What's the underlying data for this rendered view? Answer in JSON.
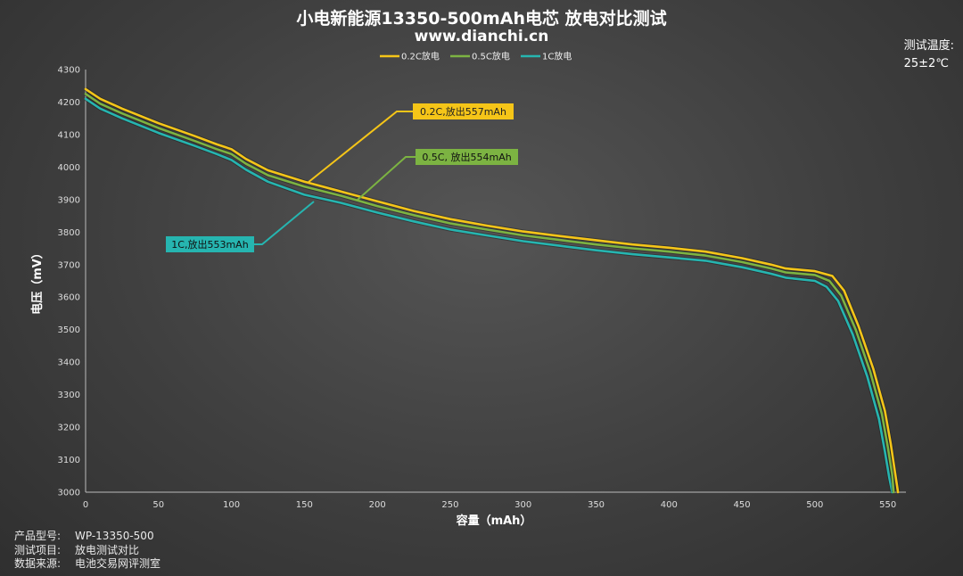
{
  "header": {
    "title": "小电新能源13350-500mAh电芯 放电对比测试",
    "subtitle": "www.dianchi.cn",
    "temp_label": "测试温度:",
    "temp_value": "25±2℃"
  },
  "footer": {
    "model_label": "产品型号:",
    "model_value": "WP-13350-500",
    "item_label": "测试项目:",
    "item_value": "放电测试对比",
    "source_label": "数据来源:",
    "source_value": "电池交易网评测室"
  },
  "chart_data": {
    "type": "line",
    "title": "小电新能源13350-500mAh电芯 放电对比测试",
    "xlabel": "容量（mAh）",
    "ylabel": "电压（mV）",
    "xlim": [
      0,
      560
    ],
    "ylim": [
      3000,
      4300
    ],
    "x_ticks": [
      0,
      50,
      100,
      150,
      200,
      250,
      300,
      350,
      400,
      450,
      500,
      550
    ],
    "y_ticks": [
      3000,
      3100,
      3200,
      3300,
      3400,
      3500,
      3600,
      3700,
      3800,
      3900,
      4000,
      4100,
      4200,
      4300
    ],
    "grid": false,
    "legend_position": "top-center",
    "series": [
      {
        "name": "0.2C放电",
        "color": "#f5c518",
        "x": [
          0,
          10,
          25,
          50,
          75,
          90,
          100,
          110,
          125,
          150,
          175,
          200,
          225,
          250,
          275,
          300,
          325,
          350,
          375,
          400,
          425,
          450,
          470,
          480,
          500,
          512,
          520,
          530,
          540,
          548,
          552,
          555,
          557
        ],
        "y": [
          4240,
          4210,
          4180,
          4135,
          4095,
          4070,
          4055,
          4025,
          3990,
          3955,
          3925,
          3895,
          3865,
          3840,
          3820,
          3802,
          3788,
          3775,
          3762,
          3752,
          3740,
          3720,
          3700,
          3688,
          3680,
          3665,
          3620,
          3510,
          3380,
          3250,
          3150,
          3060,
          3000
        ]
      },
      {
        "name": "0.5C放电",
        "color": "#7cb342",
        "x": [
          0,
          10,
          25,
          50,
          75,
          90,
          100,
          110,
          125,
          150,
          175,
          200,
          225,
          250,
          275,
          300,
          325,
          350,
          375,
          400,
          425,
          450,
          470,
          480,
          500,
          510,
          518,
          528,
          538,
          546,
          550,
          553,
          554
        ],
        "y": [
          4225,
          4195,
          4165,
          4120,
          4080,
          4055,
          4040,
          4010,
          3975,
          3940,
          3912,
          3880,
          3852,
          3827,
          3808,
          3790,
          3776,
          3762,
          3750,
          3740,
          3728,
          3708,
          3688,
          3676,
          3668,
          3650,
          3605,
          3500,
          3370,
          3240,
          3140,
          3055,
          3000
        ]
      },
      {
        "name": "1C放电",
        "color": "#26b5b0",
        "x": [
          0,
          10,
          25,
          50,
          75,
          90,
          100,
          110,
          125,
          150,
          175,
          200,
          225,
          250,
          275,
          300,
          325,
          350,
          375,
          400,
          425,
          450,
          470,
          480,
          500,
          508,
          516,
          526,
          536,
          544,
          548,
          551,
          553
        ],
        "y": [
          4210,
          4180,
          4150,
          4105,
          4065,
          4040,
          4022,
          3992,
          3955,
          3915,
          3890,
          3860,
          3833,
          3808,
          3790,
          3772,
          3758,
          3744,
          3732,
          3722,
          3712,
          3692,
          3672,
          3660,
          3650,
          3632,
          3588,
          3485,
          3355,
          3225,
          3125,
          3045,
          3000
        ]
      }
    ],
    "annotations": [
      {
        "text": "0.2C,放出557mAh",
        "series": "0.2C放电"
      },
      {
        "text": "0.5C, 放出554mAh",
        "series": "0.5C放电"
      },
      {
        "text": "1C,放出553mAh",
        "series": "1C放电"
      }
    ]
  }
}
